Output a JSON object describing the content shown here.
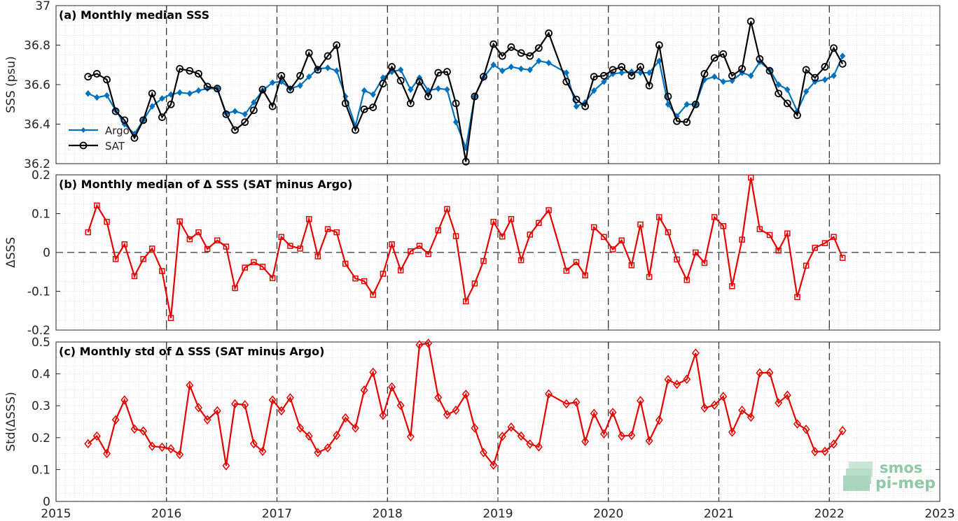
{
  "colors": {
    "argo": "#0072BD",
    "sat": "#000000",
    "delta": "#E60000",
    "grid_minor": "#d9d9d9",
    "frame": "#262626",
    "logo": "#8fc9a8"
  },
  "logo": {
    "line1": "smos",
    "line2": "pi-mep",
    "icon": "smos-pimep-logo"
  },
  "chart_data": [
    {
      "type": "line",
      "title": "(a) Monthly median SSS",
      "xlabel": "",
      "ylabel": "SSS (psu)",
      "xlim": [
        2015,
        2023
      ],
      "ylim": [
        36.2,
        37
      ],
      "xticks": [
        "2015",
        "2016",
        "2017",
        "2018",
        "2019",
        "2020",
        "2021",
        "2022",
        "2023"
      ],
      "yticks": [
        "36.2",
        "36.4",
        "36.6",
        "36.8",
        "37"
      ],
      "legend": {
        "position": "left-bottom",
        "entries": [
          "Argo",
          "SAT"
        ]
      },
      "x": [
        2015.29,
        2015.37,
        2015.46,
        2015.54,
        2015.62,
        2015.71,
        2015.79,
        2015.87,
        2015.96,
        2016.04,
        2016.12,
        2016.21,
        2016.29,
        2016.37,
        2016.46,
        2016.54,
        2016.62,
        2016.71,
        2016.79,
        2016.87,
        2016.96,
        2017.04,
        2017.12,
        2017.21,
        2017.29,
        2017.37,
        2017.46,
        2017.54,
        2017.62,
        2017.71,
        2017.79,
        2017.87,
        2017.96,
        2018.04,
        2018.12,
        2018.21,
        2018.29,
        2018.37,
        2018.46,
        2018.54,
        2018.62,
        2018.71,
        2018.79,
        2018.87,
        2018.96,
        2019.04,
        2019.12,
        2019.21,
        2019.29,
        2019.37,
        2019.46,
        2019.62,
        2019.71,
        2019.79,
        2019.87,
        2019.96,
        2020.04,
        2020.12,
        2020.21,
        2020.29,
        2020.37,
        2020.46,
        2020.54,
        2020.62,
        2020.71,
        2020.79,
        2020.87,
        2020.96,
        2021.04,
        2021.12,
        2021.21,
        2021.29,
        2021.37,
        2021.46,
        2021.54,
        2021.62,
        2021.71,
        2021.79,
        2021.87,
        2021.96,
        2022.04,
        2022.12
      ],
      "series": [
        {
          "name": "Argo",
          "marker": "diamond-filled",
          "values": [
            36.555,
            36.535,
            36.545,
            36.47,
            36.4,
            36.35,
            36.42,
            36.49,
            36.53,
            36.55,
            36.56,
            36.555,
            36.57,
            36.58,
            36.58,
            36.455,
            36.465,
            36.45,
            36.51,
            36.57,
            36.61,
            36.615,
            36.58,
            36.595,
            36.64,
            36.68,
            36.685,
            36.67,
            36.54,
            36.39,
            36.57,
            36.55,
            36.635,
            36.665,
            36.675,
            36.575,
            36.635,
            36.57,
            36.58,
            36.575,
            36.41,
            36.28,
            36.54,
            36.635,
            36.7,
            36.67,
            36.69,
            36.68,
            36.675,
            36.72,
            36.71,
            36.66,
            36.49,
            36.51,
            36.57,
            36.615,
            36.655,
            36.66,
            36.665,
            36.66,
            36.66,
            36.72,
            36.5,
            36.44,
            36.5,
            36.5,
            36.625,
            36.64,
            36.615,
            36.62,
            36.66,
            36.645,
            36.715,
            36.675,
            36.6,
            36.575,
            36.465,
            36.565,
            36.615,
            36.625,
            36.645,
            36.745
          ]
        },
        {
          "name": "SAT",
          "marker": "circle-open",
          "values": [
            36.64,
            36.655,
            36.625,
            36.465,
            36.42,
            36.33,
            36.42,
            36.555,
            36.435,
            36.5,
            36.68,
            36.67,
            36.655,
            36.59,
            36.58,
            36.45,
            36.37,
            36.41,
            36.47,
            36.575,
            36.49,
            36.645,
            36.575,
            36.645,
            36.76,
            36.675,
            36.745,
            36.8,
            36.505,
            36.37,
            36.475,
            36.485,
            36.605,
            36.69,
            36.62,
            36.505,
            36.615,
            36.54,
            36.66,
            36.665,
            36.505,
            36.21,
            36.54,
            36.64,
            36.805,
            36.745,
            36.79,
            36.76,
            36.745,
            36.785,
            36.86,
            36.615,
            36.525,
            36.49,
            36.64,
            36.645,
            36.675,
            36.69,
            36.645,
            36.69,
            36.595,
            36.8,
            36.54,
            36.415,
            36.41,
            36.5,
            36.655,
            36.735,
            36.755,
            36.645,
            36.68,
            36.92,
            36.73,
            36.67,
            36.555,
            36.505,
            36.445,
            36.675,
            36.635,
            36.69,
            36.785,
            36.705
          ]
        }
      ]
    },
    {
      "type": "line",
      "title": "(b) Monthly median of Δ SSS (SAT minus Argo)",
      "xlabel": "",
      "ylabel": "ΔSSS",
      "xlim": [
        2015,
        2023
      ],
      "ylim": [
        -0.2,
        0.2
      ],
      "yticks": [
        "-0.2",
        "-0.1",
        "0",
        "0.1",
        "0.2"
      ],
      "reference_line": 0,
      "x": [
        2015.29,
        2015.37,
        2015.46,
        2015.54,
        2015.62,
        2015.71,
        2015.79,
        2015.87,
        2015.96,
        2016.04,
        2016.12,
        2016.21,
        2016.29,
        2016.37,
        2016.46,
        2016.54,
        2016.62,
        2016.71,
        2016.79,
        2016.87,
        2016.96,
        2017.04,
        2017.12,
        2017.21,
        2017.29,
        2017.37,
        2017.46,
        2017.54,
        2017.62,
        2017.71,
        2017.79,
        2017.87,
        2017.96,
        2018.04,
        2018.12,
        2018.21,
        2018.29,
        2018.37,
        2018.46,
        2018.54,
        2018.62,
        2018.71,
        2018.79,
        2018.87,
        2018.96,
        2019.04,
        2019.12,
        2019.21,
        2019.29,
        2019.37,
        2019.46,
        2019.62,
        2019.71,
        2019.79,
        2019.87,
        2019.96,
        2020.04,
        2020.12,
        2020.21,
        2020.29,
        2020.37,
        2020.46,
        2020.54,
        2020.62,
        2020.71,
        2020.79,
        2020.87,
        2020.96,
        2021.04,
        2021.12,
        2021.21,
        2021.29,
        2021.37,
        2021.46,
        2021.54,
        2021.62,
        2021.71,
        2021.79,
        2021.87,
        2021.96,
        2022.04,
        2022.12
      ],
      "series": [
        {
          "marker": "square-open",
          "values": [
            0.052,
            0.121,
            0.079,
            -0.017,
            0.021,
            -0.061,
            -0.017,
            0.01,
            -0.048,
            -0.169,
            0.08,
            0.034,
            0.052,
            0.009,
            0.031,
            0.015,
            -0.092,
            -0.039,
            -0.025,
            -0.037,
            -0.066,
            0.04,
            0.017,
            0.01,
            0.086,
            -0.01,
            0.06,
            0.052,
            -0.029,
            -0.067,
            -0.074,
            -0.109,
            -0.055,
            0.021,
            -0.046,
            0.003,
            0.017,
            -0.004,
            0.057,
            0.112,
            0.042,
            -0.126,
            -0.08,
            -0.022,
            0.079,
            0.041,
            0.086,
            -0.02,
            0.046,
            0.076,
            0.109,
            -0.047,
            -0.025,
            -0.059,
            0.065,
            0.04,
            0.008,
            0.031,
            -0.033,
            0.072,
            -0.063,
            0.091,
            0.052,
            -0.018,
            -0.071,
            0.0,
            -0.027,
            0.091,
            0.068,
            -0.087,
            0.033,
            0.193,
            0.06,
            0.045,
            0.005,
            0.049,
            -0.115,
            -0.034,
            0.012,
            0.024,
            0.04,
            -0.014
          ]
        }
      ]
    },
    {
      "type": "line",
      "title": "(c) Monthly std of Δ SSS (SAT minus Argo)",
      "xlabel": "",
      "ylabel": "Std(ΔSSS)",
      "xlim": [
        2015,
        2023
      ],
      "ylim": [
        0,
        0.5
      ],
      "yticks": [
        "0",
        "0.1",
        "0.2",
        "0.3",
        "0.4",
        "0.5"
      ],
      "x": [
        2015.29,
        2015.37,
        2015.46,
        2015.54,
        2015.62,
        2015.71,
        2015.79,
        2015.87,
        2015.96,
        2016.04,
        2016.12,
        2016.21,
        2016.29,
        2016.37,
        2016.46,
        2016.54,
        2016.62,
        2016.71,
        2016.79,
        2016.87,
        2016.96,
        2017.04,
        2017.12,
        2017.21,
        2017.29,
        2017.37,
        2017.46,
        2017.54,
        2017.62,
        2017.71,
        2017.79,
        2017.87,
        2017.96,
        2018.04,
        2018.12,
        2018.21,
        2018.29,
        2018.37,
        2018.46,
        2018.54,
        2018.62,
        2018.71,
        2018.79,
        2018.87,
        2018.96,
        2019.04,
        2019.12,
        2019.21,
        2019.29,
        2019.37,
        2019.46,
        2019.62,
        2019.71,
        2019.79,
        2019.87,
        2019.96,
        2020.04,
        2020.12,
        2020.21,
        2020.29,
        2020.37,
        2020.46,
        2020.54,
        2020.62,
        2020.71,
        2020.79,
        2020.87,
        2020.96,
        2021.04,
        2021.12,
        2021.21,
        2021.29,
        2021.37,
        2021.46,
        2021.54,
        2021.62,
        2021.71,
        2021.79,
        2021.87,
        2021.96,
        2022.04,
        2022.12
      ],
      "series": [
        {
          "marker": "diamond-open",
          "values": [
            0.181,
            0.205,
            0.15,
            0.256,
            0.318,
            0.227,
            0.221,
            0.173,
            0.17,
            0.165,
            0.147,
            0.364,
            0.294,
            0.256,
            0.284,
            0.112,
            0.306,
            0.303,
            0.181,
            0.157,
            0.318,
            0.284,
            0.325,
            0.23,
            0.205,
            0.153,
            0.168,
            0.207,
            0.262,
            0.23,
            0.349,
            0.405,
            0.27,
            0.359,
            0.301,
            0.203,
            0.491,
            0.496,
            0.326,
            0.272,
            0.286,
            0.336,
            0.23,
            0.153,
            0.114,
            0.204,
            0.233,
            0.205,
            0.18,
            0.171,
            0.337,
            0.306,
            0.311,
            0.188,
            0.276,
            0.212,
            0.279,
            0.205,
            0.207,
            0.316,
            0.19,
            0.255,
            0.382,
            0.367,
            0.383,
            0.465,
            0.293,
            0.302,
            0.329,
            0.217,
            0.286,
            0.264,
            0.403,
            0.404,
            0.309,
            0.333,
            0.243,
            0.226,
            0.156,
            0.157,
            0.18,
            0.222
          ]
        }
      ]
    }
  ]
}
